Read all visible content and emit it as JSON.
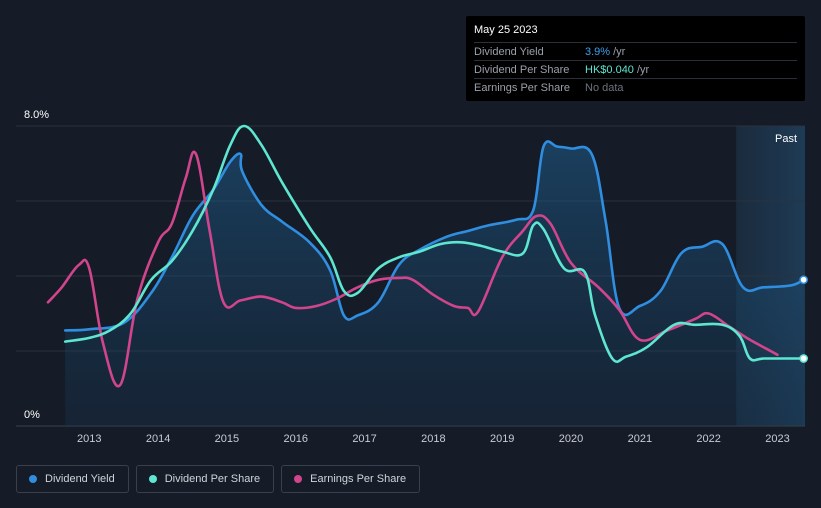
{
  "tooltip": {
    "date": "May 25 2023",
    "rows": [
      {
        "label": "Dividend Yield",
        "value": "3.9%",
        "unit": "/yr"
      },
      {
        "label": "Dividend Per Share",
        "value": "HK$0.040",
        "unit": "/yr"
      },
      {
        "label": "Earnings Per Share",
        "value": "No data"
      }
    ]
  },
  "legend": [
    {
      "label": "Dividend Yield",
      "color": "#2f8ee0"
    },
    {
      "label": "Dividend Per Share",
      "color": "#5ee6d0"
    },
    {
      "label": "Earnings Per Share",
      "color": "#d0458c"
    }
  ],
  "chart_data": {
    "type": "line",
    "ylim": [
      0,
      8
    ],
    "xlim": [
      2012.4,
      2023.4
    ],
    "y_tick_labels": [
      {
        "value": 8,
        "label": "8.0%"
      },
      {
        "value": 0,
        "label": "0%"
      }
    ],
    "x_ticks": [
      "2013",
      "2014",
      "2015",
      "2016",
      "2017",
      "2018",
      "2019",
      "2020",
      "2021",
      "2022",
      "2023"
    ],
    "past_label": "Past",
    "past_region_start": 2022.4,
    "series": [
      {
        "name": "Dividend Yield",
        "color": "#2f8ee0",
        "filled": true,
        "points": [
          [
            2012.65,
            2.55
          ],
          [
            2013.0,
            2.58
          ],
          [
            2013.5,
            2.75
          ],
          [
            2013.9,
            3.55
          ],
          [
            2014.2,
            4.5
          ],
          [
            2014.5,
            5.6
          ],
          [
            2014.8,
            6.3
          ],
          [
            2015.05,
            7.05
          ],
          [
            2015.2,
            7.25
          ],
          [
            2015.22,
            6.8
          ],
          [
            2015.5,
            5.9
          ],
          [
            2015.8,
            5.45
          ],
          [
            2016.2,
            4.9
          ],
          [
            2016.5,
            4.15
          ],
          [
            2016.7,
            2.95
          ],
          [
            2016.9,
            2.95
          ],
          [
            2017.2,
            3.3
          ],
          [
            2017.5,
            4.3
          ],
          [
            2017.8,
            4.7
          ],
          [
            2018.2,
            5.05
          ],
          [
            2018.5,
            5.2
          ],
          [
            2018.8,
            5.35
          ],
          [
            2019.2,
            5.5
          ],
          [
            2019.45,
            5.75
          ],
          [
            2019.6,
            7.45
          ],
          [
            2019.8,
            7.45
          ],
          [
            2020.0,
            7.4
          ],
          [
            2020.3,
            7.25
          ],
          [
            2020.5,
            5.5
          ],
          [
            2020.7,
            3.15
          ],
          [
            2021.0,
            3.2
          ],
          [
            2021.3,
            3.6
          ],
          [
            2021.6,
            4.6
          ],
          [
            2021.9,
            4.78
          ],
          [
            2022.2,
            4.85
          ],
          [
            2022.5,
            3.7
          ],
          [
            2022.8,
            3.7
          ],
          [
            2023.2,
            3.75
          ],
          [
            2023.38,
            3.9
          ]
        ]
      },
      {
        "name": "Dividend Per Share",
        "color": "#5ee6d0",
        "filled": false,
        "points": [
          [
            2012.65,
            2.25
          ],
          [
            2013.0,
            2.35
          ],
          [
            2013.3,
            2.55
          ],
          [
            2013.6,
            3.0
          ],
          [
            2013.9,
            3.9
          ],
          [
            2014.2,
            4.4
          ],
          [
            2014.5,
            5.2
          ],
          [
            2014.8,
            6.3
          ],
          [
            2015.05,
            7.5
          ],
          [
            2015.25,
            8.0
          ],
          [
            2015.5,
            7.5
          ],
          [
            2015.8,
            6.5
          ],
          [
            2016.2,
            5.3
          ],
          [
            2016.5,
            4.5
          ],
          [
            2016.7,
            3.6
          ],
          [
            2016.9,
            3.55
          ],
          [
            2017.2,
            4.2
          ],
          [
            2017.5,
            4.5
          ],
          [
            2017.8,
            4.65
          ],
          [
            2018.1,
            4.85
          ],
          [
            2018.4,
            4.9
          ],
          [
            2018.7,
            4.8
          ],
          [
            2019.0,
            4.65
          ],
          [
            2019.3,
            4.6
          ],
          [
            2019.45,
            5.35
          ],
          [
            2019.6,
            5.25
          ],
          [
            2019.9,
            4.2
          ],
          [
            2020.2,
            4.1
          ],
          [
            2020.35,
            2.95
          ],
          [
            2020.6,
            1.8
          ],
          [
            2020.8,
            1.85
          ],
          [
            2021.1,
            2.1
          ],
          [
            2021.5,
            2.7
          ],
          [
            2021.8,
            2.7
          ],
          [
            2022.2,
            2.7
          ],
          [
            2022.45,
            2.4
          ],
          [
            2022.6,
            1.8
          ],
          [
            2022.8,
            1.8
          ],
          [
            2023.2,
            1.8
          ],
          [
            2023.38,
            1.8
          ]
        ]
      },
      {
        "name": "Earnings Per Share",
        "color": "#d0458c",
        "filled": false,
        "points": [
          [
            2012.4,
            3.3
          ],
          [
            2012.6,
            3.7
          ],
          [
            2012.85,
            4.3
          ],
          [
            2013.0,
            4.2
          ],
          [
            2013.2,
            2.2
          ],
          [
            2013.45,
            1.1
          ],
          [
            2013.7,
            3.4
          ],
          [
            2014.0,
            4.9
          ],
          [
            2014.2,
            5.4
          ],
          [
            2014.4,
            6.6
          ],
          [
            2014.55,
            7.25
          ],
          [
            2014.75,
            5.2
          ],
          [
            2014.95,
            3.3
          ],
          [
            2015.2,
            3.35
          ],
          [
            2015.5,
            3.45
          ],
          [
            2015.8,
            3.3
          ],
          [
            2016.0,
            3.15
          ],
          [
            2016.3,
            3.2
          ],
          [
            2016.6,
            3.4
          ],
          [
            2016.9,
            3.7
          ],
          [
            2017.2,
            3.9
          ],
          [
            2017.5,
            3.95
          ],
          [
            2017.7,
            3.9
          ],
          [
            2018.0,
            3.5
          ],
          [
            2018.3,
            3.2
          ],
          [
            2018.5,
            3.15
          ],
          [
            2018.65,
            3.05
          ],
          [
            2019.0,
            4.5
          ],
          [
            2019.3,
            5.2
          ],
          [
            2019.5,
            5.6
          ],
          [
            2019.7,
            5.4
          ],
          [
            2020.0,
            4.35
          ],
          [
            2020.4,
            3.7
          ],
          [
            2020.7,
            3.1
          ],
          [
            2021.0,
            2.3
          ],
          [
            2021.4,
            2.55
          ],
          [
            2021.8,
            2.85
          ],
          [
            2022.0,
            3.0
          ],
          [
            2022.3,
            2.65
          ],
          [
            2022.6,
            2.3
          ],
          [
            2022.9,
            2.0
          ],
          [
            2023.0,
            1.9
          ]
        ]
      }
    ]
  }
}
